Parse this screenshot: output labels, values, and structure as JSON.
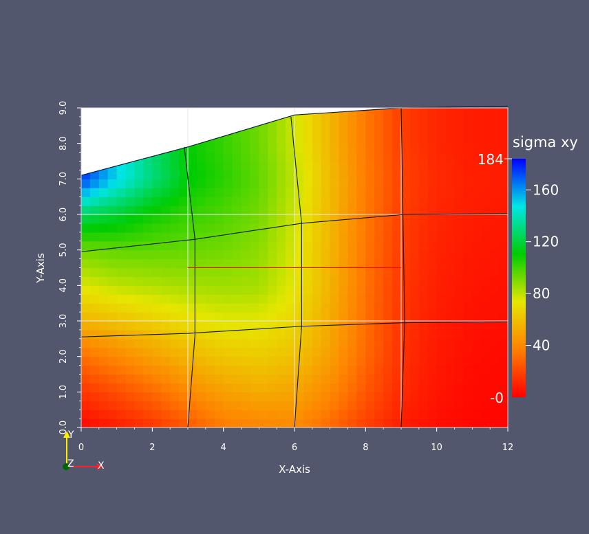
{
  "chart_data": {
    "type": "heatmap",
    "title": "",
    "xlabel": "X-Axis",
    "ylabel": "Y-Axis",
    "xlim": [
      0,
      12
    ],
    "ylim": [
      0,
      9
    ],
    "x_ticks": [
      "0",
      "2",
      "4",
      "6",
      "8",
      "10",
      "12"
    ],
    "y_ticks": [
      "0.0",
      "1.0",
      "2.0",
      "3.0",
      "4.0",
      "5.0",
      "6.0",
      "7.0",
      "8.0",
      "9.0"
    ],
    "grid": true,
    "grid_x_values": [
      3,
      6,
      9
    ],
    "grid_y_values": [
      3,
      6
    ],
    "colorbar": {
      "title": "sigma xy",
      "min": 0,
      "max": 184,
      "max_label": "184",
      "min_label": "-0",
      "tick_values": [
        160,
        120,
        80,
        40
      ],
      "tick_labels": [
        "160",
        "120",
        "80",
        "40"
      ],
      "colors_low_to_high": [
        "#ff0000",
        "#ff8000",
        "#e6e600",
        "#00cc00",
        "#00e6e6",
        "#0000ff"
      ]
    },
    "field_samples": {
      "x": [
        0,
        1,
        2,
        3,
        4,
        5,
        6,
        7,
        8,
        9,
        10,
        11,
        12
      ],
      "y": [
        0,
        1,
        2,
        3,
        4,
        5,
        6,
        7,
        8,
        9
      ],
      "values": [
        [
          2,
          8,
          15,
          25,
          35,
          38,
          40,
          30,
          18,
          8,
          4,
          2,
          1
        ],
        [
          15,
          22,
          30,
          40,
          48,
          52,
          50,
          40,
          25,
          12,
          6,
          3,
          2
        ],
        [
          32,
          40,
          48,
          56,
          62,
          64,
          60,
          48,
          30,
          14,
          7,
          4,
          3
        ],
        [
          55,
          60,
          65,
          70,
          74,
          74,
          68,
          52,
          32,
          15,
          8,
          5,
          4
        ],
        [
          75,
          80,
          82,
          84,
          85,
          84,
          74,
          55,
          33,
          16,
          9,
          6,
          5
        ],
        [
          92,
          95,
          95,
          94,
          92,
          88,
          76,
          56,
          34,
          17,
          10,
          7,
          6
        ],
        [
          125,
          118,
          108,
          102,
          98,
          92,
          78,
          57,
          35,
          18,
          11,
          8,
          7
        ],
        [
          175,
          150,
          130,
          112,
          104,
          95,
          80,
          58,
          36,
          19,
          12,
          9,
          8
        ],
        [
          175,
          150,
          128,
          110,
          102,
          93,
          78,
          56,
          35,
          18,
          11,
          8,
          7
        ],
        [
          175,
          150,
          128,
          110,
          102,
          93,
          78,
          56,
          35,
          18,
          11,
          8,
          7
        ]
      ]
    },
    "domain_top_boundary": [
      [
        0,
        7.1
      ],
      [
        3,
        7.9
      ],
      [
        6,
        8.8
      ],
      [
        9,
        9.0
      ],
      [
        12,
        9.05
      ]
    ],
    "mesh_lines": [
      [
        [
          0,
          2.55
        ],
        [
          3,
          2.65
        ],
        [
          6.2,
          2.85
        ],
        [
          9.1,
          2.95
        ],
        [
          12,
          2.98
        ]
      ],
      [
        [
          0,
          4.95
        ],
        [
          3.2,
          5.3
        ],
        [
          6.2,
          5.75
        ],
        [
          9.1,
          6.0
        ],
        [
          12,
          6.02
        ]
      ],
      [
        [
          3,
          0
        ],
        [
          3.2,
          2.6
        ],
        [
          3.2,
          5.3
        ],
        [
          2.9,
          7.9
        ]
      ],
      [
        [
          6,
          0
        ],
        [
          6.2,
          2.85
        ],
        [
          6.2,
          5.75
        ],
        [
          5.9,
          8.75
        ]
      ],
      [
        [
          9,
          0
        ],
        [
          9.1,
          2.95
        ],
        [
          9.05,
          6.0
        ],
        [
          9.0,
          9.0
        ]
      ]
    ],
    "red_probe_line": [
      [
        3,
        4.5
      ],
      [
        9,
        4.5
      ]
    ]
  },
  "axes_widget": {
    "y_label": "Y",
    "z_label": "Z",
    "x_label": "X"
  },
  "colors": {
    "background": "#52576e",
    "grid": "#e8e8f0",
    "tick_text": "#ffffff",
    "mesh": "#0a1a1a",
    "probe_line": "#ff0000",
    "triad_y": "#ffee00",
    "triad_x": "#ff2020",
    "triad_z": "#006400"
  }
}
